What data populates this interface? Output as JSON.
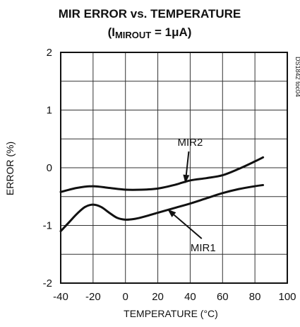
{
  "chart_data": {
    "type": "line",
    "title": "MIR ERROR vs. TEMPERATURE",
    "subtitle_prefix": "(I",
    "subtitle_sub": "MIROUT",
    "subtitle_suffix": " = 1μA)",
    "xlabel": "TEMPERATURE (°C)",
    "ylabel": "ERROR (%)",
    "xlim": [
      -40,
      100
    ],
    "ylim": [
      -2,
      2
    ],
    "x_ticks": [
      "-40",
      "-20",
      "0",
      "20",
      "40",
      "60",
      "80",
      "100"
    ],
    "y_ticks": [
      "2",
      "1",
      "0",
      "-1",
      "-2"
    ],
    "grid": true,
    "doc_id": "DS1842 toc04",
    "series": [
      {
        "name": "MIR2",
        "x": [
          -40,
          -30,
          -20,
          -10,
          0,
          10,
          20,
          30,
          40,
          50,
          60,
          70,
          80,
          85
        ],
        "y": [
          -0.42,
          -0.35,
          -0.32,
          -0.35,
          -0.38,
          -0.38,
          -0.36,
          -0.3,
          -0.22,
          -0.18,
          -0.13,
          -0.02,
          0.11,
          0.18
        ]
      },
      {
        "name": "MIR1",
        "x": [
          -40,
          -35,
          -30,
          -25,
          -20,
          -15,
          -10,
          -5,
          0,
          5,
          10,
          20,
          30,
          40,
          50,
          60,
          70,
          80,
          85
        ],
        "y": [
          -1.1,
          -0.95,
          -0.8,
          -0.68,
          -0.64,
          -0.68,
          -0.78,
          -0.87,
          -0.9,
          -0.89,
          -0.86,
          -0.78,
          -0.7,
          -0.62,
          -0.53,
          -0.44,
          -0.37,
          -0.32,
          -0.3
        ]
      }
    ],
    "annotations": [
      {
        "label": "MIR2",
        "text_x": 40,
        "text_y": 0.38,
        "tip_x": 37,
        "tip_y": -0.27
      },
      {
        "label": "MIR1",
        "text_x": 48,
        "text_y": -1.45,
        "tip_x": 26,
        "tip_y": -0.72
      }
    ]
  }
}
